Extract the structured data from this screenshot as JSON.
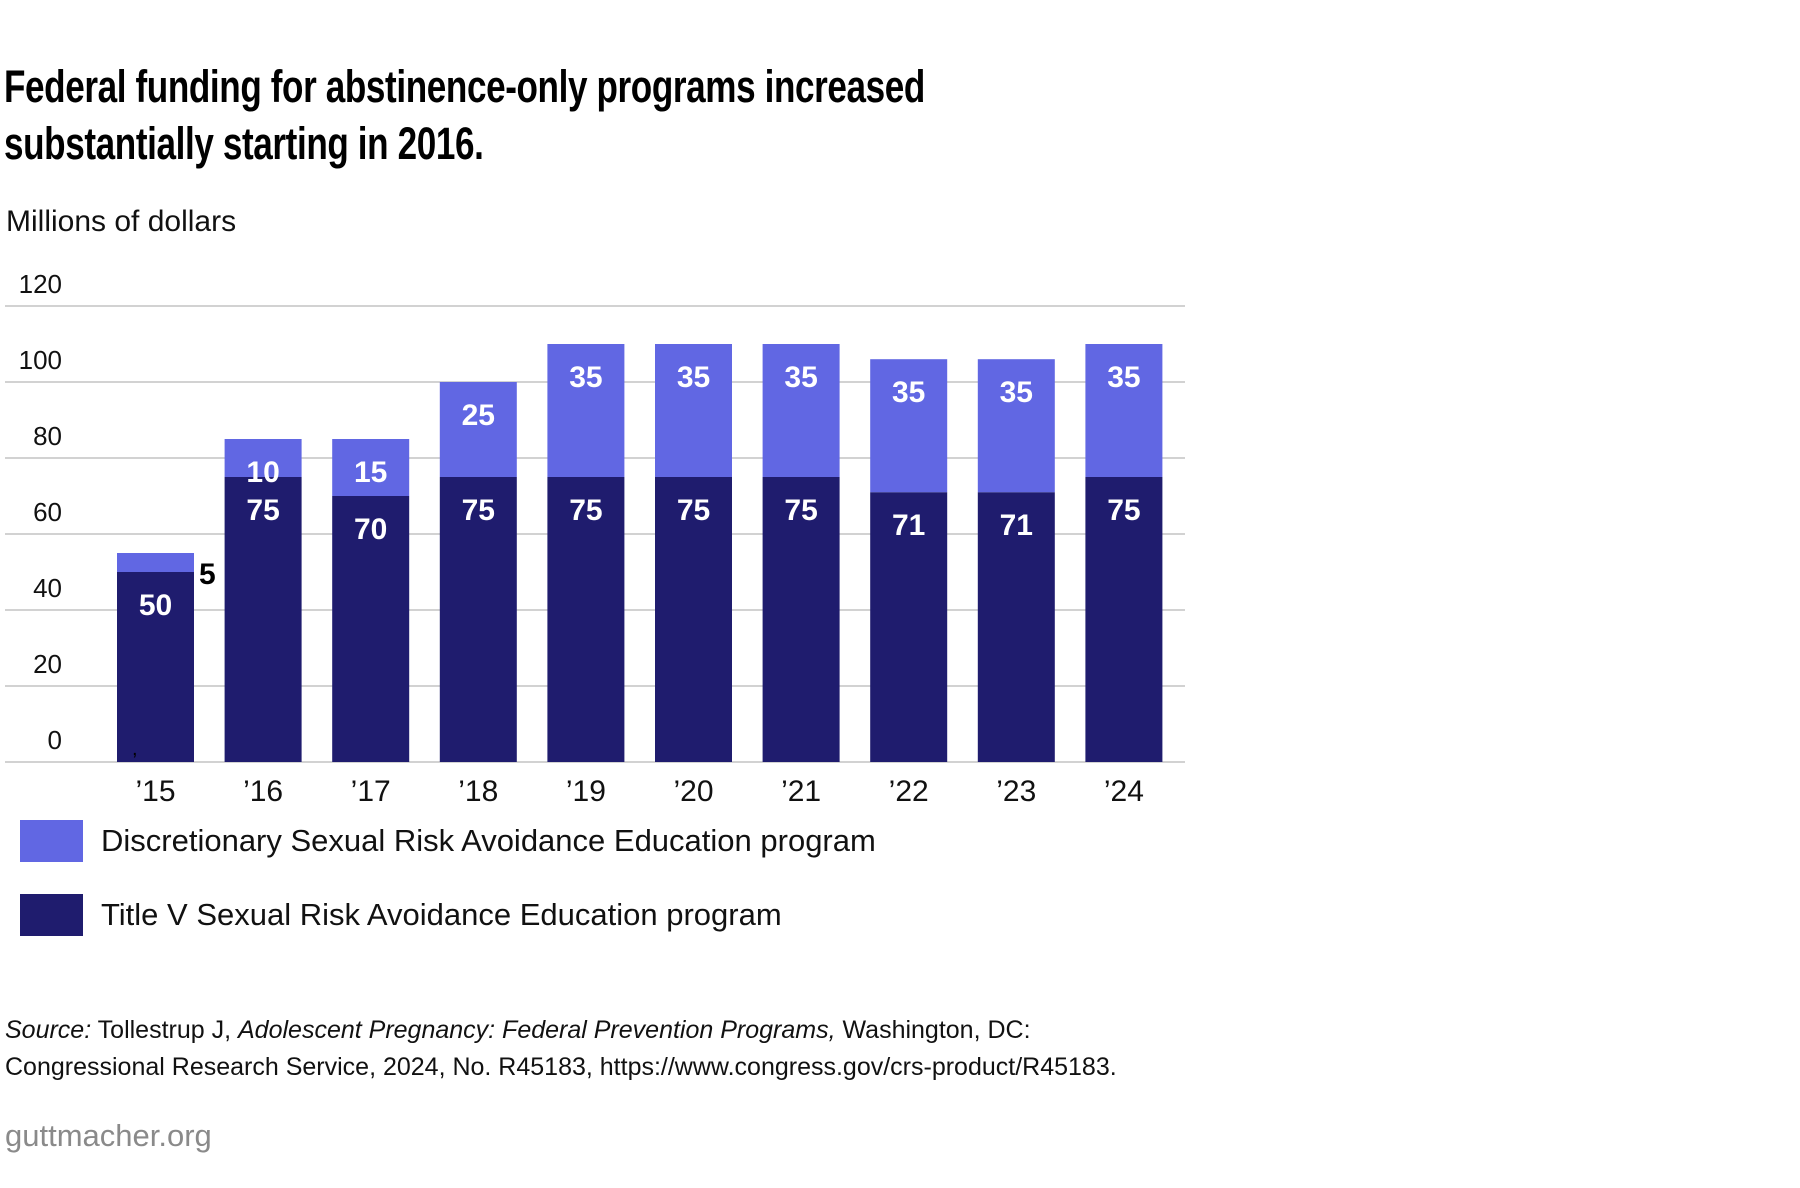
{
  "title_lines": [
    "Federal funding for abstinence-only programs increased",
    "substantially starting in 2016."
  ],
  "colors": {
    "discretionary": "#6167e3",
    "title_v": "#1f1c6e",
    "grid": "#d2d2d2",
    "logo": "#8a8a8a"
  },
  "chart_data": {
    "type": "bar",
    "stacked": true,
    "title": "Federal funding for abstinence-only programs increased substantially starting in 2016.",
    "ylabel": "Millions of dollars",
    "xlabel": "",
    "ylim": [
      0,
      120
    ],
    "yticks": [
      0,
      20,
      40,
      60,
      80,
      100,
      120
    ],
    "grid": true,
    "legend_position": "bottom-left",
    "categories": [
      "’15",
      "’16",
      "’17",
      "’18",
      "’19",
      "’20",
      "’21",
      "’22",
      "’23",
      "’24"
    ],
    "series": [
      {
        "name": "Title V Sexual Risk Avoidance Education program",
        "color": "#1f1c6e",
        "values": [
          50,
          75,
          70,
          75,
          75,
          75,
          75,
          71,
          71,
          75
        ]
      },
      {
        "name": "Discretionary Sexual Risk Avoidance Education program",
        "color": "#6167e3",
        "values": [
          5,
          10,
          15,
          25,
          35,
          35,
          35,
          35,
          35,
          35
        ]
      }
    ],
    "outside_labels": [
      {
        "category": "’15",
        "series": "Discretionary Sexual Risk Avoidance Education program"
      }
    ]
  },
  "legend": [
    {
      "label": "Discretionary Sexual Risk Avoidance Education program",
      "color": "#6167e3"
    },
    {
      "label": "Title V Sexual Risk Avoidance Education program",
      "color": "#1f1c6e"
    }
  ],
  "source": {
    "prefix": "Source:",
    "author": " Tollestrup J, ",
    "work": "Adolescent Pregnancy: Federal Prevention Programs,",
    "line1_rest": " Washington, DC:",
    "line2": "Congressional Research Service, 2024, No. R45183, https://www.congress.gov/crs-product/R45183."
  },
  "stray_mark": ",",
  "logo": "guttmacher.org"
}
